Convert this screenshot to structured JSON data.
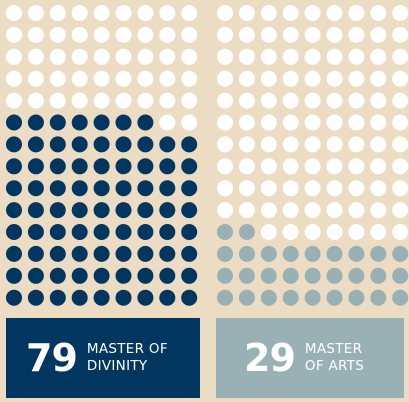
{
  "chart_data": {
    "type": "waffle",
    "series": [
      {
        "name": "MASTER OF DIVINITY",
        "value": 79,
        "color": "#003660"
      },
      {
        "name": "MASTER OF ARTS",
        "value": 29,
        "color": "#99b0b5"
      }
    ],
    "empty_color": "#ffffff"
  }
}
